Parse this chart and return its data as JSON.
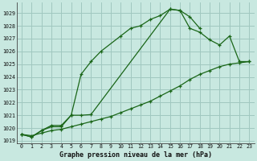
{
  "title": "Graphe pression niveau de la mer (hPa)",
  "bg_color": "#c8e8e0",
  "grid_color": "#a0c8c0",
  "line_color": "#1a6618",
  "ylim": [
    1018.8,
    1029.8
  ],
  "xlim": [
    -0.5,
    23.5
  ],
  "yticks": [
    1019,
    1020,
    1021,
    1022,
    1023,
    1024,
    1025,
    1026,
    1027,
    1028,
    1029
  ],
  "xticks": [
    0,
    1,
    2,
    3,
    4,
    5,
    6,
    7,
    8,
    9,
    10,
    11,
    12,
    13,
    14,
    15,
    16,
    17,
    18,
    19,
    20,
    21,
    22,
    23
  ],
  "line1_x": [
    0,
    1,
    2,
    3,
    4,
    5,
    6,
    7,
    8,
    10,
    11,
    12,
    13,
    14,
    15,
    16,
    17,
    18
  ],
  "line1_y": [
    1019.5,
    1019.3,
    1019.8,
    1020.2,
    1020.2,
    1021.0,
    1024.2,
    1025.2,
    1026.0,
    1027.2,
    1027.8,
    1028.0,
    1028.5,
    1028.8,
    1029.3,
    1029.2,
    1028.7,
    1027.8
  ],
  "line2_x": [
    0,
    1,
    2,
    3,
    4,
    5,
    6,
    7,
    15,
    16,
    17,
    18,
    19,
    20,
    21,
    22,
    23
  ],
  "line2_y": [
    1019.5,
    1019.3,
    1019.8,
    1020.1,
    1020.1,
    1021.0,
    1021.0,
    1021.05,
    1029.3,
    1029.2,
    1027.8,
    1027.5,
    1026.9,
    1026.5,
    1027.2,
    1025.2,
    1025.2
  ],
  "line3_x": [
    0,
    1,
    2,
    3,
    4,
    5,
    6,
    7,
    8,
    9,
    10,
    11,
    12,
    13,
    14,
    15,
    16,
    17,
    18,
    19,
    20,
    21,
    22,
    23
  ],
  "line3_y": [
    1019.5,
    1019.4,
    1019.6,
    1019.8,
    1019.9,
    1020.1,
    1020.3,
    1020.5,
    1020.7,
    1020.9,
    1021.2,
    1021.5,
    1021.8,
    1022.1,
    1022.5,
    1022.9,
    1023.3,
    1023.8,
    1024.2,
    1024.5,
    1024.8,
    1025.0,
    1025.1,
    1025.2
  ]
}
